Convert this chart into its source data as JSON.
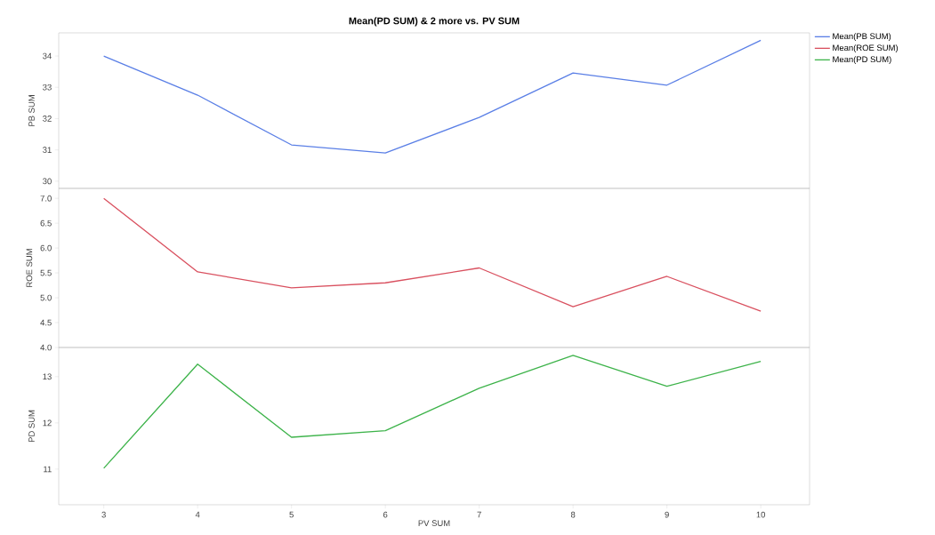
{
  "chart_data": [
    {
      "type": "line",
      "title": "Mean(PD SUM) & 2 more vs. PV SUM",
      "ylabel": "PB SUM",
      "x": [
        3,
        4,
        5,
        6,
        7,
        8,
        9,
        10
      ],
      "xlim": [
        2.52,
        10.52
      ],
      "ylim": [
        29.77,
        34.74
      ],
      "yticks": [
        30,
        31,
        32,
        33,
        34
      ],
      "tick_labels": "y",
      "legend": "top right",
      "marker": "none",
      "line_style": "solid",
      "series": [
        {
          "name": "Mean(PB SUM)",
          "color": "#5a7fe6",
          "values": [
            34.0,
            32.75,
            31.16,
            30.9,
            32.04,
            33.46,
            33.07,
            34.5
          ]
        }
      ]
    },
    {
      "type": "line",
      "ylabel": "ROE SUM",
      "x": [
        3,
        4,
        5,
        6,
        7,
        8,
        9,
        10
      ],
      "xlim": [
        2.52,
        10.52
      ],
      "ylim": [
        4.0,
        7.2
      ],
      "yticks": [
        {
          "value": 4,
          "label": "4.0"
        },
        4.5,
        {
          "value": 5,
          "label": "5.0"
        },
        5.5,
        {
          "value": 6,
          "label": "6.0"
        },
        6.5,
        {
          "value": 7,
          "label": "7.0"
        }
      ],
      "tick_labels": "y",
      "legend": "top right",
      "marker": "none",
      "line_style": "solid",
      "series": [
        {
          "name": "Mean(ROE SUM)",
          "color": "#d9505f",
          "values": [
            7.0,
            5.52,
            5.2,
            5.3,
            5.6,
            4.82,
            5.43,
            4.73
          ]
        }
      ]
    },
    {
      "type": "line",
      "xlabel": "PV SUM",
      "ylabel": "PD SUM",
      "x": [
        3,
        4,
        5,
        6,
        7,
        8,
        9,
        10
      ],
      "xlim": [
        2.52,
        10.52
      ],
      "xticks": [
        3,
        4,
        5,
        6,
        7,
        8,
        9,
        10
      ],
      "ylim": [
        10.23,
        13.63
      ],
      "yticks": [
        11,
        12,
        13
      ],
      "legend": "top right",
      "marker": "none",
      "line_style": "solid",
      "series": [
        {
          "name": "Mean(PD SUM)",
          "color": "#3db34a",
          "values": [
            11.02,
            13.27,
            11.69,
            11.83,
            12.75,
            13.46,
            12.79,
            13.33
          ]
        }
      ]
    }
  ]
}
